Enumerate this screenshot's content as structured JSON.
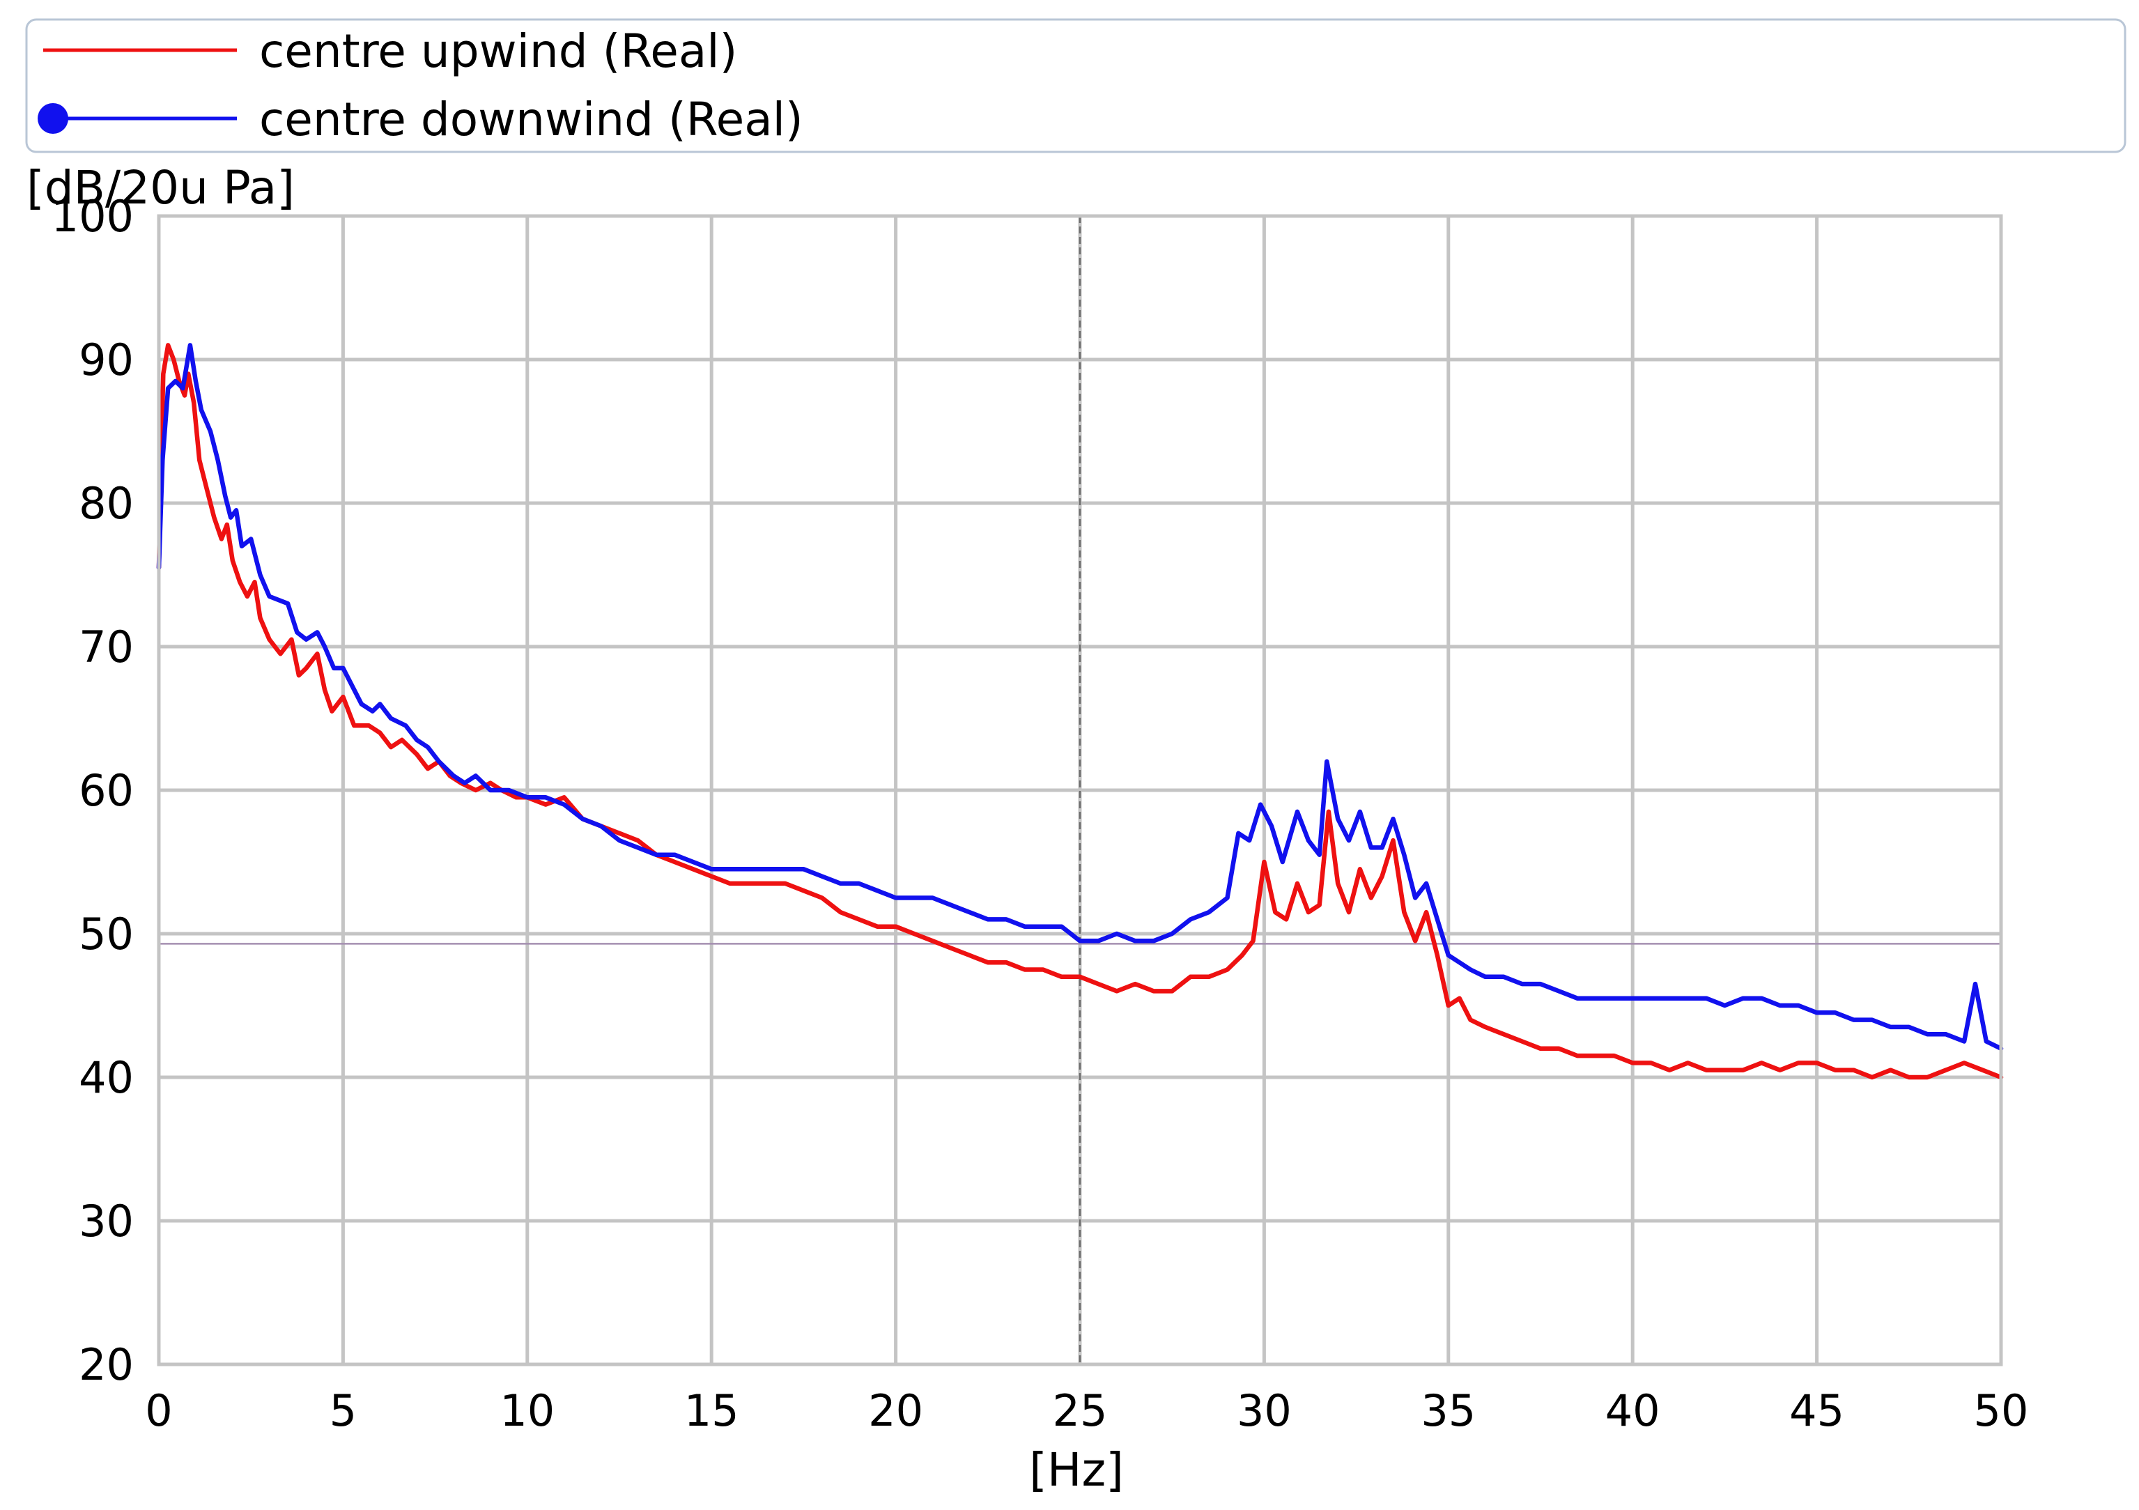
{
  "chart_data": {
    "type": "line",
    "title": "",
    "ylabel": "[dB/20u Pa]",
    "xlabel": "[Hz]",
    "xlim": [
      0,
      50
    ],
    "ylim": [
      20,
      100
    ],
    "xticks": [
      0,
      5,
      10,
      15,
      20,
      25,
      30,
      35,
      40,
      45,
      50
    ],
    "yticks": [
      20,
      30,
      40,
      50,
      60,
      70,
      80,
      90,
      100
    ],
    "grid": true,
    "legend": {
      "placement": "top",
      "border_color": "#b9c6d6"
    },
    "cursor_x": 25,
    "reference_y": 49.3,
    "series": [
      {
        "name": "centre upwind (Real)",
        "color": "#ee1111",
        "marker": "none",
        "points": [
          [
            0,
            75.5
          ],
          [
            0.12,
            89
          ],
          [
            0.25,
            91
          ],
          [
            0.4,
            90
          ],
          [
            0.55,
            88.5
          ],
          [
            0.7,
            87.5
          ],
          [
            0.8,
            89
          ],
          [
            0.95,
            87
          ],
          [
            1.1,
            83
          ],
          [
            1.3,
            81
          ],
          [
            1.5,
            79
          ],
          [
            1.7,
            77.5
          ],
          [
            1.85,
            78.5
          ],
          [
            2.0,
            76
          ],
          [
            2.2,
            74.5
          ],
          [
            2.4,
            73.5
          ],
          [
            2.6,
            74.5
          ],
          [
            2.75,
            72
          ],
          [
            3.0,
            70.5
          ],
          [
            3.3,
            69.5
          ],
          [
            3.6,
            70.5
          ],
          [
            3.8,
            68
          ],
          [
            4.0,
            68.5
          ],
          [
            4.3,
            69.5
          ],
          [
            4.5,
            67
          ],
          [
            4.7,
            65.5
          ],
          [
            5.0,
            66.5
          ],
          [
            5.3,
            64.5
          ],
          [
            5.7,
            64.5
          ],
          [
            6.0,
            64
          ],
          [
            6.3,
            63
          ],
          [
            6.6,
            63.5
          ],
          [
            7.0,
            62.5
          ],
          [
            7.3,
            61.5
          ],
          [
            7.6,
            62
          ],
          [
            7.9,
            61
          ],
          [
            8.2,
            60.5
          ],
          [
            8.6,
            60
          ],
          [
            9.0,
            60.5
          ],
          [
            9.3,
            60
          ],
          [
            9.7,
            59.5
          ],
          [
            10.0,
            59.5
          ],
          [
            10.5,
            59
          ],
          [
            11.0,
            59.5
          ],
          [
            11.5,
            58
          ],
          [
            12.0,
            57.5
          ],
          [
            12.5,
            57
          ],
          [
            13.0,
            56.5
          ],
          [
            13.5,
            55.5
          ],
          [
            14.0,
            55
          ],
          [
            14.5,
            54.5
          ],
          [
            15.0,
            54
          ],
          [
            15.5,
            53.5
          ],
          [
            16.0,
            53.5
          ],
          [
            16.5,
            53.5
          ],
          [
            17.0,
            53.5
          ],
          [
            17.5,
            53
          ],
          [
            18.0,
            52.5
          ],
          [
            18.5,
            51.5
          ],
          [
            19.0,
            51
          ],
          [
            19.5,
            50.5
          ],
          [
            20.0,
            50.5
          ],
          [
            20.5,
            50
          ],
          [
            21.0,
            49.5
          ],
          [
            21.5,
            49
          ],
          [
            22.0,
            48.5
          ],
          [
            22.5,
            48
          ],
          [
            23.0,
            48
          ],
          [
            23.5,
            47.5
          ],
          [
            24.0,
            47.5
          ],
          [
            24.5,
            47
          ],
          [
            25.0,
            47
          ],
          [
            25.5,
            46.5
          ],
          [
            26.0,
            46
          ],
          [
            26.5,
            46.5
          ],
          [
            27.0,
            46
          ],
          [
            27.5,
            46
          ],
          [
            28.0,
            47
          ],
          [
            28.5,
            47
          ],
          [
            29.0,
            47.5
          ],
          [
            29.4,
            48.5
          ],
          [
            29.7,
            49.5
          ],
          [
            30.0,
            55
          ],
          [
            30.3,
            51.5
          ],
          [
            30.6,
            51
          ],
          [
            30.9,
            53.5
          ],
          [
            31.2,
            51.5
          ],
          [
            31.5,
            52
          ],
          [
            31.75,
            58.5
          ],
          [
            32.0,
            53.5
          ],
          [
            32.3,
            51.5
          ],
          [
            32.6,
            54.5
          ],
          [
            32.9,
            52.5
          ],
          [
            33.2,
            54
          ],
          [
            33.5,
            56.5
          ],
          [
            33.8,
            51.5
          ],
          [
            34.1,
            49.5
          ],
          [
            34.4,
            51.5
          ],
          [
            34.7,
            48.5
          ],
          [
            35.0,
            45
          ],
          [
            35.3,
            45.5
          ],
          [
            35.6,
            44
          ],
          [
            36.0,
            43.5
          ],
          [
            36.5,
            43
          ],
          [
            37.0,
            42.5
          ],
          [
            37.5,
            42
          ],
          [
            38.0,
            42
          ],
          [
            38.5,
            41.5
          ],
          [
            39.0,
            41.5
          ],
          [
            39.5,
            41.5
          ],
          [
            40.0,
            41
          ],
          [
            40.5,
            41
          ],
          [
            41.0,
            40.5
          ],
          [
            41.5,
            41
          ],
          [
            42.0,
            40.5
          ],
          [
            42.5,
            40.5
          ],
          [
            43.0,
            40.5
          ],
          [
            43.5,
            41
          ],
          [
            44.0,
            40.5
          ],
          [
            44.5,
            41
          ],
          [
            45.0,
            41
          ],
          [
            45.5,
            40.5
          ],
          [
            46.0,
            40.5
          ],
          [
            46.5,
            40
          ],
          [
            47.0,
            40.5
          ],
          [
            47.5,
            40
          ],
          [
            48.0,
            40
          ],
          [
            48.5,
            40.5
          ],
          [
            49.0,
            41
          ],
          [
            49.5,
            40.5
          ],
          [
            50.0,
            40
          ]
        ]
      },
      {
        "name": "centre downwind (Real)",
        "color": "#1111ee",
        "marker": "circle",
        "points": [
          [
            0,
            75.5
          ],
          [
            0.1,
            83
          ],
          [
            0.25,
            88
          ],
          [
            0.45,
            88.5
          ],
          [
            0.65,
            88
          ],
          [
            0.85,
            91
          ],
          [
            1.0,
            88.5
          ],
          [
            1.15,
            86.5
          ],
          [
            1.4,
            85
          ],
          [
            1.6,
            83
          ],
          [
            1.8,
            80.5
          ],
          [
            1.95,
            79
          ],
          [
            2.1,
            79.5
          ],
          [
            2.25,
            77
          ],
          [
            2.5,
            77.5
          ],
          [
            2.75,
            75
          ],
          [
            3.0,
            73.5
          ],
          [
            3.5,
            73
          ],
          [
            3.75,
            71
          ],
          [
            4.0,
            70.5
          ],
          [
            4.3,
            71
          ],
          [
            4.5,
            70
          ],
          [
            4.75,
            68.5
          ],
          [
            5.0,
            68.5
          ],
          [
            5.2,
            67.5
          ],
          [
            5.5,
            66
          ],
          [
            5.8,
            65.5
          ],
          [
            6.0,
            66
          ],
          [
            6.3,
            65
          ],
          [
            6.7,
            64.5
          ],
          [
            7.0,
            63.5
          ],
          [
            7.3,
            63
          ],
          [
            7.6,
            62
          ],
          [
            8.0,
            61
          ],
          [
            8.3,
            60.5
          ],
          [
            8.6,
            61
          ],
          [
            9.0,
            60
          ],
          [
            9.5,
            60
          ],
          [
            10.0,
            59.5
          ],
          [
            10.5,
            59.5
          ],
          [
            11.0,
            59
          ],
          [
            11.5,
            58
          ],
          [
            12.0,
            57.5
          ],
          [
            12.5,
            56.5
          ],
          [
            13.0,
            56
          ],
          [
            13.5,
            55.5
          ],
          [
            14.0,
            55.5
          ],
          [
            14.5,
            55
          ],
          [
            15.0,
            54.5
          ],
          [
            15.5,
            54.5
          ],
          [
            16.0,
            54.5
          ],
          [
            16.5,
            54.5
          ],
          [
            17.0,
            54.5
          ],
          [
            17.5,
            54.5
          ],
          [
            18.0,
            54
          ],
          [
            18.5,
            53.5
          ],
          [
            19.0,
            53.5
          ],
          [
            19.5,
            53
          ],
          [
            20.0,
            52.5
          ],
          [
            20.5,
            52.5
          ],
          [
            21.0,
            52.5
          ],
          [
            21.5,
            52
          ],
          [
            22.0,
            51.5
          ],
          [
            22.5,
            51
          ],
          [
            23.0,
            51
          ],
          [
            23.5,
            50.5
          ],
          [
            24.0,
            50.5
          ],
          [
            24.5,
            50.5
          ],
          [
            25.0,
            49.5
          ],
          [
            25.5,
            49.5
          ],
          [
            26.0,
            50
          ],
          [
            26.5,
            49.5
          ],
          [
            27.0,
            49.5
          ],
          [
            27.5,
            50
          ],
          [
            28.0,
            51
          ],
          [
            28.5,
            51.5
          ],
          [
            29.0,
            52.5
          ],
          [
            29.3,
            57
          ],
          [
            29.6,
            56.5
          ],
          [
            29.9,
            59
          ],
          [
            30.2,
            57.5
          ],
          [
            30.5,
            55
          ],
          [
            30.9,
            58.5
          ],
          [
            31.2,
            56.5
          ],
          [
            31.5,
            55.5
          ],
          [
            31.7,
            62
          ],
          [
            32.0,
            58
          ],
          [
            32.3,
            56.5
          ],
          [
            32.6,
            58.5
          ],
          [
            32.9,
            56
          ],
          [
            33.2,
            56
          ],
          [
            33.5,
            58
          ],
          [
            33.8,
            55.5
          ],
          [
            34.1,
            52.5
          ],
          [
            34.4,
            53.5
          ],
          [
            34.7,
            51
          ],
          [
            35.0,
            48.5
          ],
          [
            35.3,
            48
          ],
          [
            35.6,
            47.5
          ],
          [
            36.0,
            47
          ],
          [
            36.5,
            47
          ],
          [
            37.0,
            46.5
          ],
          [
            37.5,
            46.5
          ],
          [
            38.0,
            46
          ],
          [
            38.5,
            45.5
          ],
          [
            39.0,
            45.5
          ],
          [
            39.5,
            45.5
          ],
          [
            40.0,
            45.5
          ],
          [
            40.5,
            45.5
          ],
          [
            41.0,
            45.5
          ],
          [
            41.5,
            45.5
          ],
          [
            42.0,
            45.5
          ],
          [
            42.5,
            45
          ],
          [
            43.0,
            45.5
          ],
          [
            43.5,
            45.5
          ],
          [
            44.0,
            45
          ],
          [
            44.5,
            45
          ],
          [
            45.0,
            44.5
          ],
          [
            45.5,
            44.5
          ],
          [
            46.0,
            44
          ],
          [
            46.5,
            44
          ],
          [
            47.0,
            43.5
          ],
          [
            47.5,
            43.5
          ],
          [
            48.0,
            43
          ],
          [
            48.5,
            43
          ],
          [
            49.0,
            42.5
          ],
          [
            49.3,
            46.5
          ],
          [
            49.6,
            42.5
          ],
          [
            50.0,
            42
          ]
        ]
      }
    ]
  }
}
